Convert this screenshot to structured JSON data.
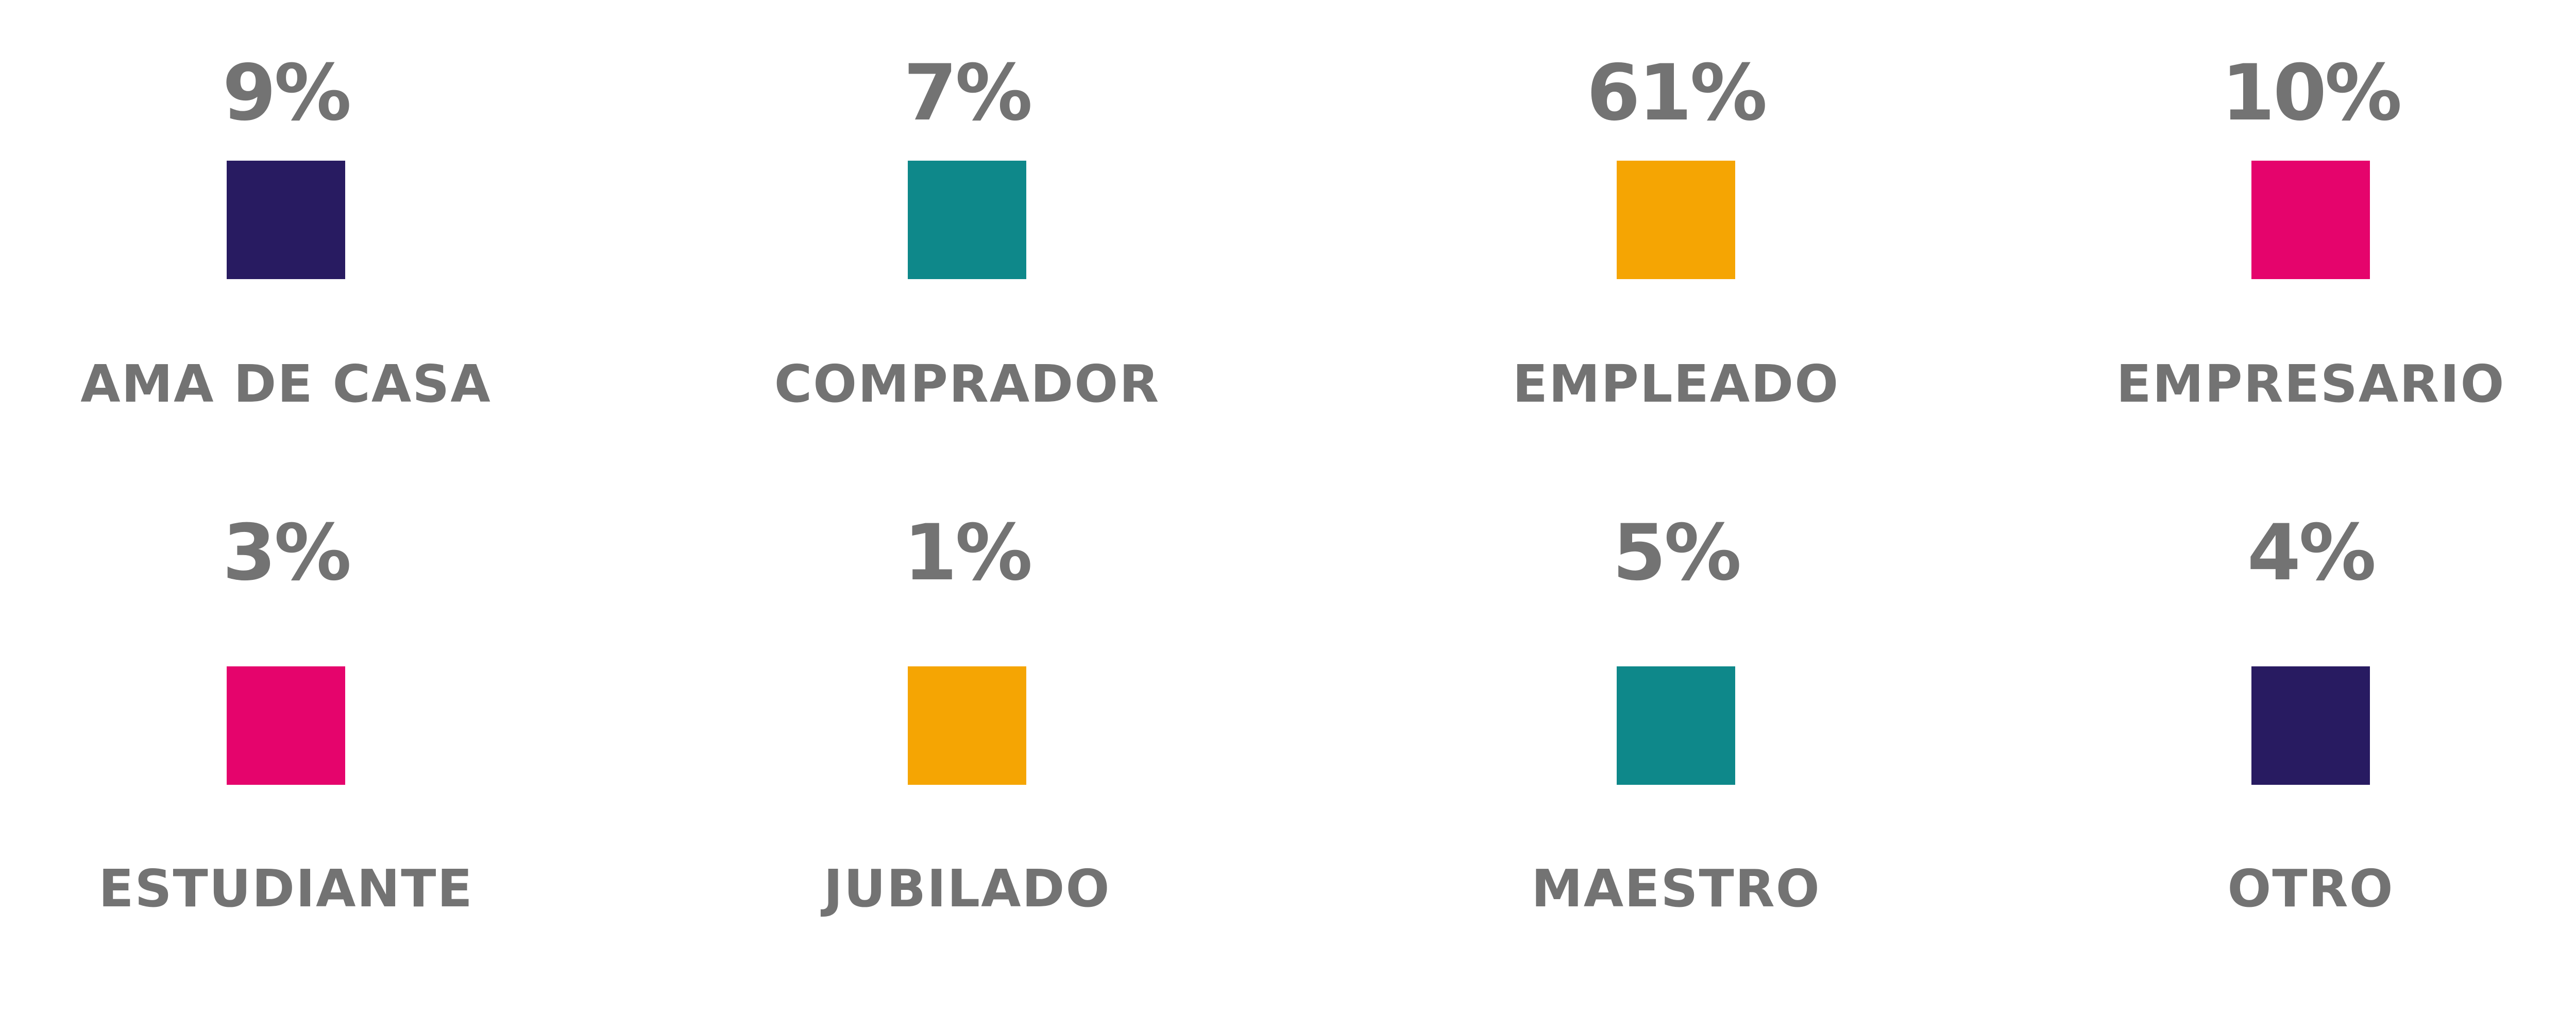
{
  "chart_data": {
    "type": "legend-grid",
    "unit": "%",
    "items": [
      {
        "label": "AMA DE CASA",
        "value": 9,
        "display": "9%",
        "color": "#281b61"
      },
      {
        "label": "COMPRADOR",
        "value": 7,
        "display": "7%",
        "color": "#0e888a"
      },
      {
        "label": "EMPLEADO",
        "value": 61,
        "display": "61%",
        "color": "#f5a503"
      },
      {
        "label": "EMPRESARIO",
        "value": 10,
        "display": "10%",
        "color": "#e5046c"
      },
      {
        "label": "ESTUDIANTE",
        "value": 3,
        "display": "3%",
        "color": "#e5046c"
      },
      {
        "label": "JUBILADO",
        "value": 1,
        "display": "1%",
        "color": "#f5a503"
      },
      {
        "label": "MAESTRO",
        "value": 5,
        "display": "5%",
        "color": "#0e888a"
      },
      {
        "label": "OTRO",
        "value": 4,
        "display": "4%",
        "color": "#281b61"
      }
    ]
  },
  "colors": {
    "text": "#737373",
    "background": "#ffffff"
  }
}
